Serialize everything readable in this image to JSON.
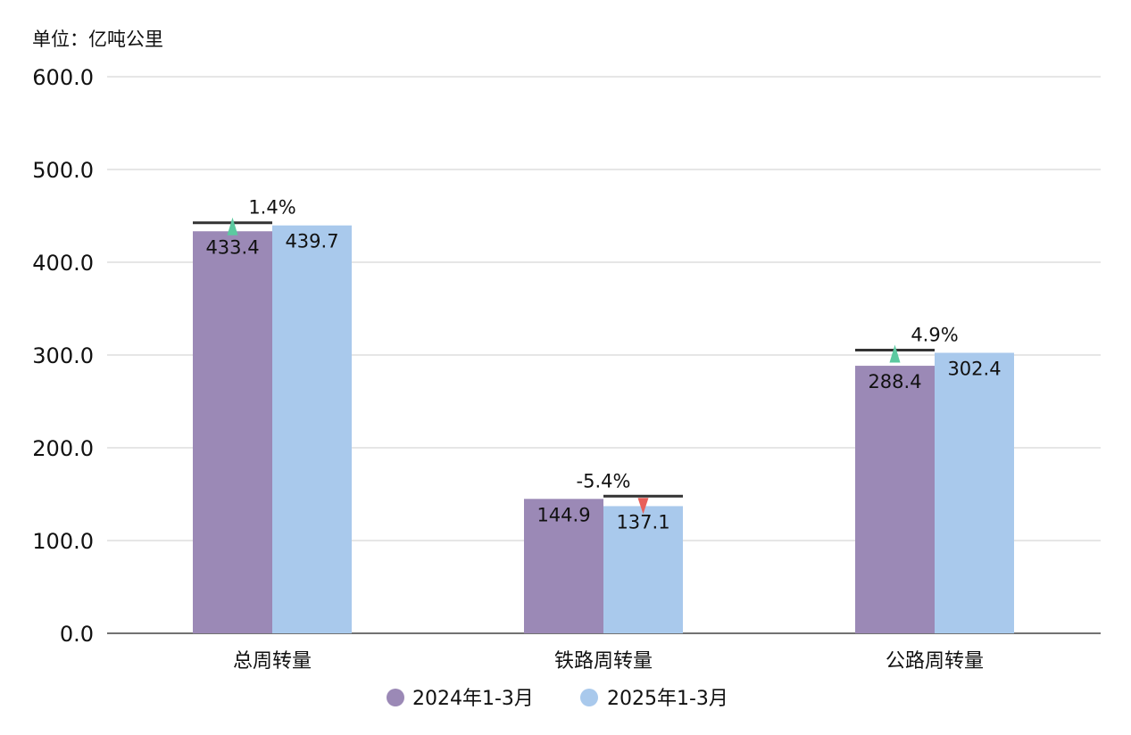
{
  "unit_label": "单位：亿吨公里",
  "colors": {
    "series_2024": "#9b89b6",
    "series_2025": "#a9c9ec",
    "up_marker": "#5cc9a0",
    "down_marker": "#e8605a",
    "grid": "#dddddd",
    "baseline": "#444444",
    "compare_line": "#333333"
  },
  "chart_data": {
    "type": "bar",
    "categories": [
      "总周转量",
      "铁路周转量",
      "公路周转量"
    ],
    "series": [
      {
        "name": "2024年1-3月",
        "values": [
          433.4,
          144.9,
          288.4
        ]
      },
      {
        "name": "2025年1-3月",
        "values": [
          439.7,
          137.1,
          302.4
        ]
      }
    ],
    "value_labels": [
      [
        "433.4",
        "144.9",
        "288.4"
      ],
      [
        "439.7",
        "137.1",
        "302.4"
      ]
    ],
    "change_labels": [
      "1.4%",
      "-5.4%",
      "4.9%"
    ],
    "change_direction": [
      "up",
      "down",
      "up"
    ],
    "ylim": [
      0,
      600
    ],
    "yticks": [
      0,
      100,
      200,
      300,
      400,
      500,
      600
    ],
    "ytick_labels": [
      "0.0",
      "100.0",
      "200.0",
      "300.0",
      "400.0",
      "500.0",
      "600.0"
    ],
    "grid": true,
    "legend_position": "bottom"
  }
}
